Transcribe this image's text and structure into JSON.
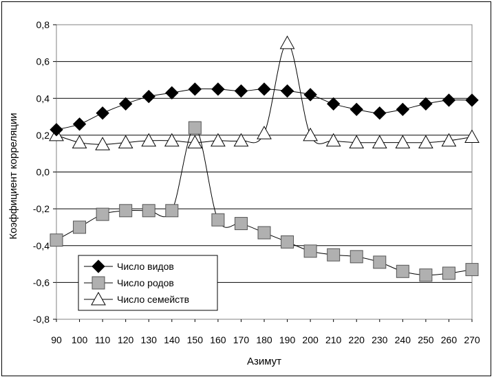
{
  "chart_data": {
    "type": "line",
    "title": "",
    "xlabel": "Азимут",
    "ylabel": "Коэффициент корреляции",
    "x": [
      90,
      100,
      110,
      120,
      130,
      140,
      150,
      160,
      170,
      180,
      190,
      200,
      210,
      220,
      230,
      240,
      250,
      260,
      270
    ],
    "x_tick_labels": [
      "90",
      "100",
      "110",
      "120",
      "130",
      "140",
      "150",
      "160",
      "170",
      "180",
      "190",
      "200",
      "210",
      "220",
      "230",
      "240",
      "250",
      "260",
      "270"
    ],
    "ylim": [
      -0.8,
      0.8
    ],
    "y_ticks": [
      0.8,
      0.6,
      0.4,
      0.2,
      0.0,
      -0.2,
      -0.4,
      -0.6,
      -0.8
    ],
    "y_tick_labels": [
      "0,8",
      "0,6",
      "0,4",
      "0,2",
      "0,0",
      "-0,2",
      "-0,4",
      "-0,6",
      "-0,8"
    ],
    "grid": true,
    "legend_position": "bottom-left",
    "series": [
      {
        "name": "Число видов",
        "marker": "diamond",
        "color": "#000000",
        "values": [
          0.23,
          0.26,
          0.32,
          0.37,
          0.41,
          0.43,
          0.45,
          0.45,
          0.44,
          0.45,
          0.44,
          0.42,
          0.37,
          0.34,
          0.32,
          0.34,
          0.37,
          0.39,
          0.39
        ]
      },
      {
        "name": "Число родов",
        "marker": "square",
        "color": "#b0b0b0",
        "values": [
          -0.37,
          -0.3,
          -0.23,
          -0.21,
          -0.21,
          -0.21,
          0.24,
          -0.26,
          -0.28,
          -0.33,
          -0.38,
          -0.43,
          -0.45,
          -0.46,
          -0.49,
          -0.54,
          -0.56,
          -0.55,
          -0.53
        ]
      },
      {
        "name": "Число семейств",
        "marker": "triangle",
        "color": "#ffffff",
        "values": [
          0.2,
          0.16,
          0.15,
          0.16,
          0.17,
          0.17,
          0.16,
          0.17,
          0.17,
          0.21,
          0.7,
          0.2,
          0.17,
          0.16,
          0.16,
          0.16,
          0.16,
          0.17,
          0.19
        ]
      }
    ]
  }
}
